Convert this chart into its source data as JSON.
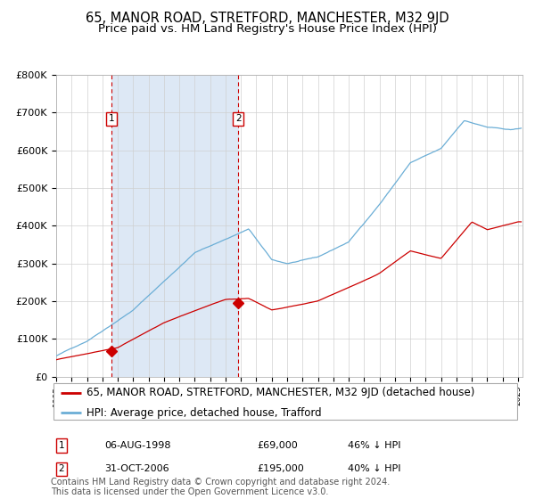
{
  "title": "65, MANOR ROAD, STRETFORD, MANCHESTER, M32 9JD",
  "subtitle": "Price paid vs. HM Land Registry's House Price Index (HPI)",
  "hpi_label": "HPI: Average price, detached house, Trafford",
  "property_label": "65, MANOR ROAD, STRETFORD, MANCHESTER, M32 9JD (detached house)",
  "purchases": [
    {
      "date_num": 1998.6,
      "price": 69000,
      "label": "1",
      "date_str": "06-AUG-1998",
      "pct": "46% ↓ HPI"
    },
    {
      "date_num": 2006.83,
      "price": 195000,
      "label": "2",
      "date_str": "31-OCT-2006",
      "pct": "40% ↓ HPI"
    }
  ],
  "highlight_color": "#dde8f5",
  "red_color": "#cc0000",
  "blue_color": "#6baed6",
  "vline_color": "#cc0000",
  "ylim": [
    0,
    800000
  ],
  "yticks": [
    0,
    100000,
    200000,
    300000,
    400000,
    500000,
    600000,
    700000,
    800000
  ],
  "ytick_labels": [
    "£0",
    "£100K",
    "£200K",
    "£300K",
    "£400K",
    "£500K",
    "£600K",
    "£700K",
    "£800K"
  ],
  "xlim_start": 1995.0,
  "xlim_end": 2025.3,
  "footer": "Contains HM Land Registry data © Crown copyright and database right 2024.\nThis data is licensed under the Open Government Licence v3.0.",
  "title_fontsize": 10.5,
  "subtitle_fontsize": 9.5,
  "axis_fontsize": 8,
  "legend_fontsize": 8.5,
  "footer_fontsize": 7
}
